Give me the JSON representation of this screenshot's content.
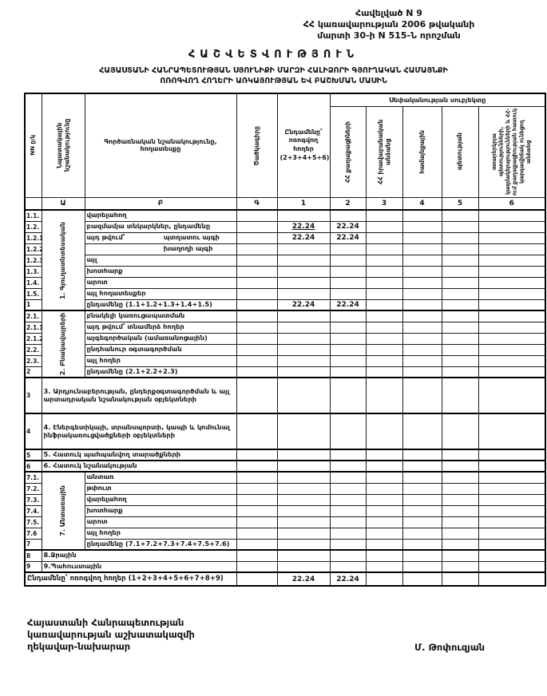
{
  "doc": {
    "appendix_line1": "Հավելված N 9",
    "appendix_line2": "ՀՀ կառավարության 2006 թվականի",
    "appendix_line3": "մարտի 30-ի N 515-Ն որոշման",
    "title": "ՀԱՇՎԵՏՎՈՒԹՅՈՒՆ",
    "subtitle_line1": "ՀԱՅԱՍՏԱՆԻ ՀԱՆՐԱՊԵՏՈՒԹՅԱՆ ՍՅՈՒՆԻՔԻ ՄԱՐԶԻ ՀԱԼԻՁՈՐԻ ԳՅՈՒՂԱԿԱՆ ՀԱՄԱՅՆՔԻ",
    "subtitle_line2": "ՈՌՈԳՎՈՂ ՀՈՂԵՐԻ ԱՌԿԱՅՈՒԹՅԱՆ ԵՎ ԲԱՇԽՄԱՆ ՄԱՍԻՆ"
  },
  "table": {
    "header": {
      "col_nn": "NN ը/կ",
      "col_purpose": "Նպատակային նշանակությունը",
      "col_functional": "Գործառնական նշանակությունը, հողատեսքը",
      "col_code": "Ծածկագիրը",
      "col_total": "Ընդամենը՝ ոռոգվող հողեր (2+3+4+5+6)",
      "ownership_group": "Սեփականության սուբյեկտը",
      "own_col_2": "ՀՀ քաղաքացիների",
      "own_col_3": "ՀՀ իրավաբանական անձանց",
      "own_col_4": "համայնքային",
      "own_col_5": "պետության",
      "own_col_6": "օտարերկրյա պետությունների, կազմակերպությունների և ՀՀ-ում քաղաքացիության հատուկ կարգավիճակ ունեցող անձանց",
      "letters": [
        "Ա",
        "Բ",
        "Գ",
        "1",
        "2",
        "3",
        "4",
        "5",
        "6"
      ]
    },
    "rows": [
      {
        "no": "1.1.",
        "label": "վարելահող",
        "section": {
          "label": "1. Գյուղատնտեսական",
          "span": 9
        }
      },
      {
        "no": "1.2.",
        "label": "բազմամյա տնկարկներ, ընդամենը",
        "vals": [
          "",
          "22.24",
          "22.24",
          "",
          "",
          "",
          ""
        ],
        "underline_total": true
      },
      {
        "no": "1.2.1.",
        "label": "այդ թվում՝",
        "label2": "պտղատու այգի",
        "vals": [
          "",
          "22.24",
          "22.24",
          "",
          "",
          "",
          ""
        ]
      },
      {
        "no": "1.2.2.",
        "label": "",
        "label2": "խաղողի այգի"
      },
      {
        "no": "1.2.3.",
        "label": "այլ"
      },
      {
        "no": "1.3.",
        "label": "խոտհարք"
      },
      {
        "no": "1.4.",
        "label": "արոտ"
      },
      {
        "no": "1.5.",
        "label": "այլ հողատեսքեր"
      },
      {
        "no": "1",
        "label": "ընդամենը (1.1+1.2+1.3+1.4+1.5)",
        "vals": [
          "",
          "22.24",
          "22.24",
          "",
          "",
          "",
          ""
        ]
      },
      {
        "no": "2.1.",
        "label": "բնակելի կառուցապատման",
        "thick": true,
        "section": {
          "label": "2. Բնակավայրերի",
          "span": 6
        }
      },
      {
        "no": "2.1.1.",
        "label": "այդ թվում՝ տնամերձ հողեր"
      },
      {
        "no": "2.1.2.",
        "label": "այգեգործական (ամառանոցային)"
      },
      {
        "no": "2.2.",
        "label": "ընդհանուր օգտագործման"
      },
      {
        "no": "2.3.",
        "label": "այլ հողեր"
      },
      {
        "no": "2",
        "label": "ընդամենը (2.1+2.2+2.3)"
      },
      {
        "no": "3",
        "wide": true,
        "tall": true,
        "thick": true,
        "label": "3. Արդյունաբերության, ընդերքօգտագործման և այլ արտադրական նշանակության օբյեկտների"
      },
      {
        "no": "4",
        "wide": true,
        "tall": true,
        "thick": true,
        "label": "4. Էներգետիկայի, տրանսպորտի, կապի և կոմունալ ինֆրակառուցվածքների օբյեկտների"
      },
      {
        "no": "5",
        "wide": true,
        "thick": true,
        "label": "5. Հատուկ պահպանվող տարածքների"
      },
      {
        "no": "6",
        "wide": true,
        "thick": true,
        "label": "6. Հատուկ նշանակության"
      },
      {
        "no": "7.1.",
        "label": "անտառ",
        "thick": true,
        "section": {
          "label": "7. Անտառային",
          "span": 7
        }
      },
      {
        "no": "7.2.",
        "label": "թփուտ"
      },
      {
        "no": "7.3.",
        "label": "վարելահող"
      },
      {
        "no": "7.4.",
        "label": "խոտհարք"
      },
      {
        "no": "7.5.",
        "label": "արոտ"
      },
      {
        "no": "7.6",
        "label": "այլ հողեր"
      },
      {
        "no": "7",
        "label": "ընդամենը (7.1+7.2+7.3+7.4+7.5+7.6)"
      },
      {
        "no": "8",
        "wide": true,
        "thick": true,
        "label": "8.Ջրային"
      },
      {
        "no": "9",
        "wide": true,
        "label": "9.Պահուստային"
      }
    ],
    "total_row": {
      "label": "Ընդամենը՝ ոռոգվող հողեր (1+2+3+4+5+6+7+8+9)",
      "vals": [
        "",
        "22.24",
        "22.24",
        "",
        "",
        "",
        ""
      ]
    }
  },
  "footer": {
    "left_line1": "Հայաստանի Հանրապետության",
    "left_line2": "կառավարության աշխատակազմի",
    "left_line3": "ղեկավար-նախարար",
    "signature": "Մ. Թոփուզյան"
  }
}
